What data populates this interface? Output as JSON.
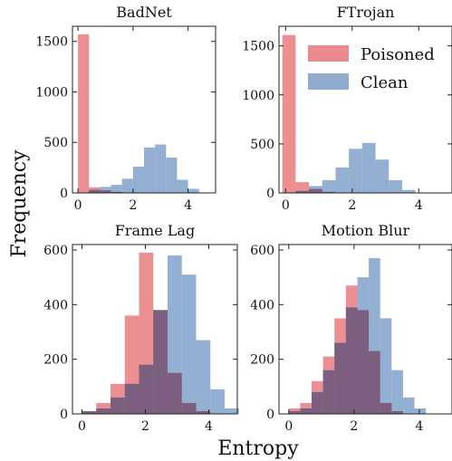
{
  "figure": {
    "xlabel": "Entropy",
    "ylabel": "Frequency"
  },
  "legend": {
    "items": [
      {
        "label": "Poisoned",
        "color": "#e8767a"
      },
      {
        "label": "Clean",
        "color": "#7b9ec7"
      }
    ]
  },
  "colors": {
    "poisoned": "#e8767a",
    "clean": "#7b9ec7",
    "overlap": "#7a5878"
  },
  "chart_data": [
    {
      "type": "bar",
      "title": "BadNet",
      "xlim": [
        -0.2,
        5
      ],
      "ylim": [
        0,
        1650
      ],
      "xticks": [
        0,
        2,
        4
      ],
      "yticks": [
        0,
        500,
        1000,
        1500
      ],
      "bins": [
        0,
        0.4,
        0.8,
        1.2,
        1.6,
        2.0,
        2.4,
        2.8,
        3.2,
        3.6,
        4.0,
        4.4,
        4.8
      ],
      "series": [
        {
          "name": "Poisoned",
          "counts": [
            1570,
            55,
            25,
            10,
            5,
            0,
            0,
            0,
            0,
            0,
            0,
            0
          ]
        },
        {
          "name": "Clean",
          "counts": [
            0,
            30,
            60,
            80,
            140,
            260,
            450,
            480,
            350,
            130,
            40,
            0
          ]
        }
      ]
    },
    {
      "type": "bar",
      "title": "FTrojan",
      "xlim": [
        -0.2,
        5
      ],
      "ylim": [
        0,
        1700
      ],
      "xticks": [
        0,
        2,
        4
      ],
      "yticks": [
        0,
        500,
        1000,
        1500
      ],
      "bins": [
        -0.1,
        0.3,
        0.7,
        1.1,
        1.5,
        1.9,
        2.3,
        2.7,
        3.1,
        3.5,
        3.9,
        4.3
      ],
      "series": [
        {
          "name": "Poisoned",
          "counts": [
            1610,
            110,
            40,
            10,
            0,
            0,
            0,
            0,
            0,
            0,
            0
          ]
        },
        {
          "name": "Clean",
          "counts": [
            0,
            20,
            70,
            130,
            260,
            450,
            510,
            340,
            130,
            30,
            0
          ]
        }
      ]
    },
    {
      "type": "bar",
      "title": "Frame Lag",
      "xlim": [
        -0.3,
        4.9
      ],
      "ylim": [
        0,
        620
      ],
      "xticks": [
        0,
        2,
        4
      ],
      "yticks": [
        0,
        200,
        400,
        600
      ],
      "bins": [
        0,
        0.45,
        0.9,
        1.35,
        1.8,
        2.25,
        2.7,
        3.15,
        3.6,
        4.05,
        4.5,
        4.95
      ],
      "series": [
        {
          "name": "Poisoned",
          "counts": [
            10,
            40,
            110,
            360,
            590,
            380,
            150,
            40,
            10,
            0,
            0
          ]
        },
        {
          "name": "Clean",
          "counts": [
            10,
            20,
            60,
            110,
            180,
            380,
            580,
            510,
            270,
            90,
            20
          ]
        }
      ]
    },
    {
      "type": "bar",
      "title": "Motion Blur",
      "xlim": [
        -0.3,
        5
      ],
      "ylim": [
        0,
        620
      ],
      "xticks": [
        0,
        2,
        4
      ],
      "yticks": [
        0,
        200,
        400,
        600
      ],
      "bins": [
        0,
        0.35,
        0.7,
        1.05,
        1.4,
        1.75,
        2.1,
        2.45,
        2.8,
        3.15,
        3.5,
        3.85,
        4.2
      ],
      "series": [
        {
          "name": "Poisoned",
          "counts": [
            20,
            40,
            120,
            210,
            350,
            470,
            380,
            230,
            40,
            10,
            0,
            0
          ]
        },
        {
          "name": "Clean",
          "counts": [
            10,
            20,
            80,
            160,
            260,
            390,
            500,
            570,
            350,
            160,
            60,
            20
          ]
        }
      ]
    }
  ]
}
